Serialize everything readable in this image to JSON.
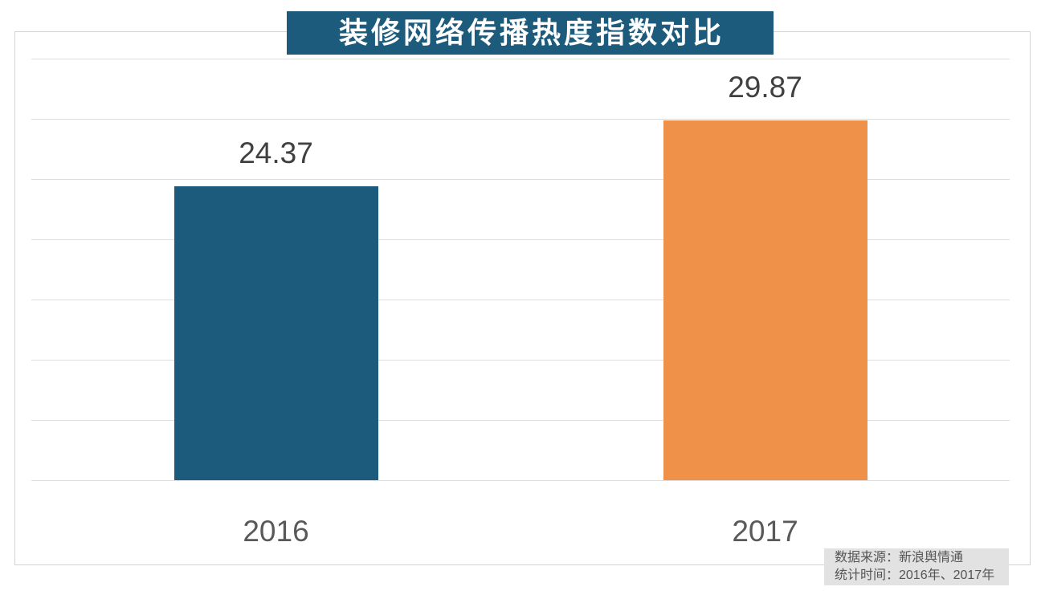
{
  "title": "装修网络传播热度指数对比",
  "source": {
    "line1": "数据来源：新浪舆情通",
    "line2": "统计时间：2016年、2017年"
  },
  "colors": {
    "title_bg": "#1d5b7c",
    "bar_2016": "#1d5b7c",
    "bar_2017": "#ef9149",
    "gridline": "#dedede",
    "border": "#d2d2d2",
    "value_text": "#404040",
    "category_text": "#595959",
    "source_bg": "#e2e2e2"
  },
  "chart_data": {
    "type": "bar",
    "categories": [
      "2016",
      "2017"
    ],
    "values": [
      24.37,
      29.87
    ],
    "value_labels": [
      "24.37",
      "29.87"
    ],
    "title": "装修网络传播热度指数对比",
    "xlabel": "",
    "ylabel": "",
    "ylim": [
      0,
      35
    ],
    "grid_step": 5,
    "grid": "on",
    "legend": "none",
    "annotations": [
      "数据来源：新浪舆情通",
      "统计时间：2016年、2017年"
    ]
  }
}
